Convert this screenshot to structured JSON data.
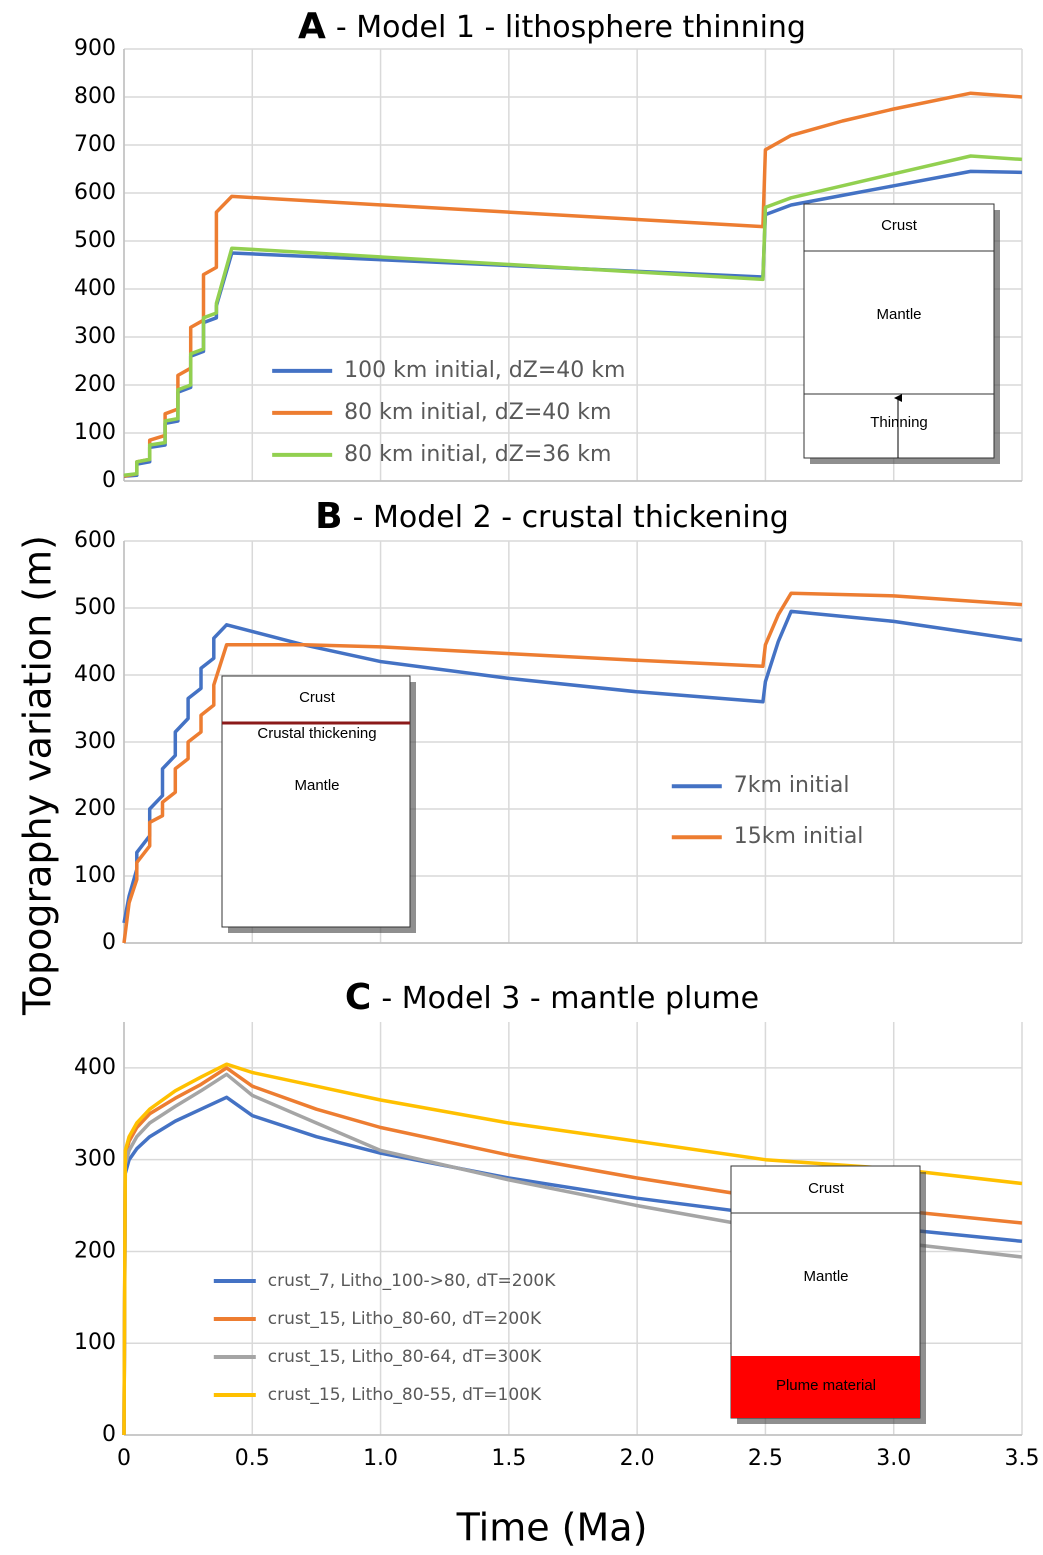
{
  "chart_data": [
    {
      "type": "line",
      "panel_label": "A",
      "title": "- Model 1 - lithosphere thinning",
      "x": [
        0,
        0.05,
        0.05,
        0.1,
        0.1,
        0.16,
        0.16,
        0.21,
        0.21,
        0.26,
        0.26,
        0.31,
        0.31,
        0.36,
        0.36,
        0.42,
        2.49,
        2.5,
        2.6,
        2.8,
        3.0,
        3.3,
        3.5
      ],
      "series": [
        {
          "name": "100 km initial, dZ=40 km",
          "color": "#4472c4",
          "values": [
            10,
            12,
            35,
            40,
            70,
            75,
            120,
            125,
            185,
            195,
            260,
            270,
            330,
            340,
            365,
            475,
            425,
            555,
            575,
            595,
            615,
            645,
            643
          ]
        },
        {
          "name": "80 km initial, dZ=40 km",
          "color": "#ed7d31",
          "values": [
            10,
            15,
            40,
            45,
            85,
            95,
            140,
            150,
            220,
            235,
            320,
            335,
            430,
            445,
            560,
            593,
            530,
            690,
            720,
            750,
            775,
            808,
            800
          ]
        },
        {
          "name": "80 km initial, dZ=36 km",
          "color": "#92d050",
          "values": [
            12,
            15,
            40,
            45,
            75,
            80,
            125,
            130,
            190,
            200,
            265,
            275,
            340,
            350,
            370,
            485,
            420,
            570,
            590,
            615,
            640,
            677,
            670
          ]
        }
      ],
      "xlim": [
        0,
        3.5
      ],
      "ylim": [
        0,
        900
      ],
      "yticks": [
        0,
        100,
        200,
        300,
        400,
        500,
        600,
        700,
        800,
        900
      ],
      "grid": true,
      "legend_position": "lower center",
      "inset_labels": [
        "Crust",
        "Mantle",
        "Thinning"
      ]
    },
    {
      "type": "line",
      "panel_label": "B",
      "title": "- Model 2 - crustal thickening",
      "y_label": "Topography variation (m)",
      "x": [
        0,
        0.02,
        0.05,
        0.05,
        0.1,
        0.1,
        0.15,
        0.15,
        0.2,
        0.2,
        0.25,
        0.25,
        0.3,
        0.3,
        0.35,
        0.35,
        0.4,
        0.7,
        1.0,
        1.5,
        2.0,
        2.49,
        2.5,
        2.55,
        2.6,
        3.0,
        3.5
      ],
      "series": [
        {
          "name": "7km initial",
          "color": "#4472c4",
          "values": [
            30,
            70,
            110,
            135,
            160,
            200,
            220,
            260,
            280,
            315,
            335,
            365,
            380,
            410,
            425,
            455,
            475,
            445,
            420,
            395,
            375,
            360,
            390,
            450,
            495,
            480,
            452
          ]
        },
        {
          "name": "15km initial",
          "color": "#ed7d31",
          "values": [
            0,
            60,
            95,
            120,
            145,
            180,
            190,
            210,
            225,
            260,
            275,
            300,
            315,
            340,
            355,
            385,
            445,
            445,
            442,
            432,
            422,
            413,
            445,
            490,
            522,
            518,
            505
          ]
        }
      ],
      "xlim": [
        0,
        3.5
      ],
      "ylim": [
        0,
        600
      ],
      "yticks": [
        0,
        100,
        200,
        300,
        400,
        500,
        600
      ],
      "grid": true,
      "legend_position": "center right",
      "inset_labels": [
        "Crust",
        "Crustal thickening",
        "Mantle"
      ]
    },
    {
      "type": "line",
      "panel_label": "C",
      "title": "- Model 3 - mantle plume",
      "x_label": "Time (Ma)",
      "x": [
        0,
        0.005,
        0.02,
        0.05,
        0.1,
        0.2,
        0.3,
        0.4,
        0.5,
        0.75,
        1.0,
        1.5,
        2.0,
        2.5,
        3.0,
        3.5
      ],
      "series": [
        {
          "name": "crust_7, Litho_100->80, dT=200K",
          "color": "#4472c4",
          "values": [
            0,
            285,
            300,
            312,
            325,
            342,
            355,
            368,
            348,
            325,
            307,
            280,
            258,
            240,
            225,
            211
          ]
        },
        {
          "name": "crust_15, Litho_80-60, dT=200K",
          "color": "#ed7d31",
          "values": [
            0,
            305,
            320,
            335,
            350,
            367,
            382,
            400,
            380,
            355,
            335,
            305,
            280,
            258,
            245,
            231
          ]
        },
        {
          "name": "crust_15, Litho_80-64, dT=300K",
          "color": "#a5a5a5",
          "values": [
            0,
            295,
            310,
            325,
            340,
            358,
            375,
            393,
            370,
            340,
            310,
            278,
            250,
            225,
            210,
            194
          ]
        },
        {
          "name": "crust_15, Litho_80-55, dT=100K",
          "color": "#ffc000",
          "values": [
            0,
            310,
            325,
            340,
            355,
            375,
            390,
            404,
            395,
            380,
            365,
            340,
            320,
            300,
            290,
            274
          ]
        }
      ],
      "xlim": [
        0,
        3.5
      ],
      "xticks": [
        0,
        0.5,
        {
          "value": 1,
          "label": "1.0"
        },
        1.5,
        {
          "value": 2,
          "label": "2.0"
        },
        2.5,
        {
          "value": 3,
          "label": "3.0"
        },
        3.5
      ],
      "ylim": [
        0,
        450
      ],
      "yticks": [
        0,
        100,
        200,
        300,
        400
      ],
      "grid": true,
      "legend_position": "lower left",
      "inset_labels": [
        "Crust",
        "Mantle",
        "Plume material"
      ]
    }
  ]
}
